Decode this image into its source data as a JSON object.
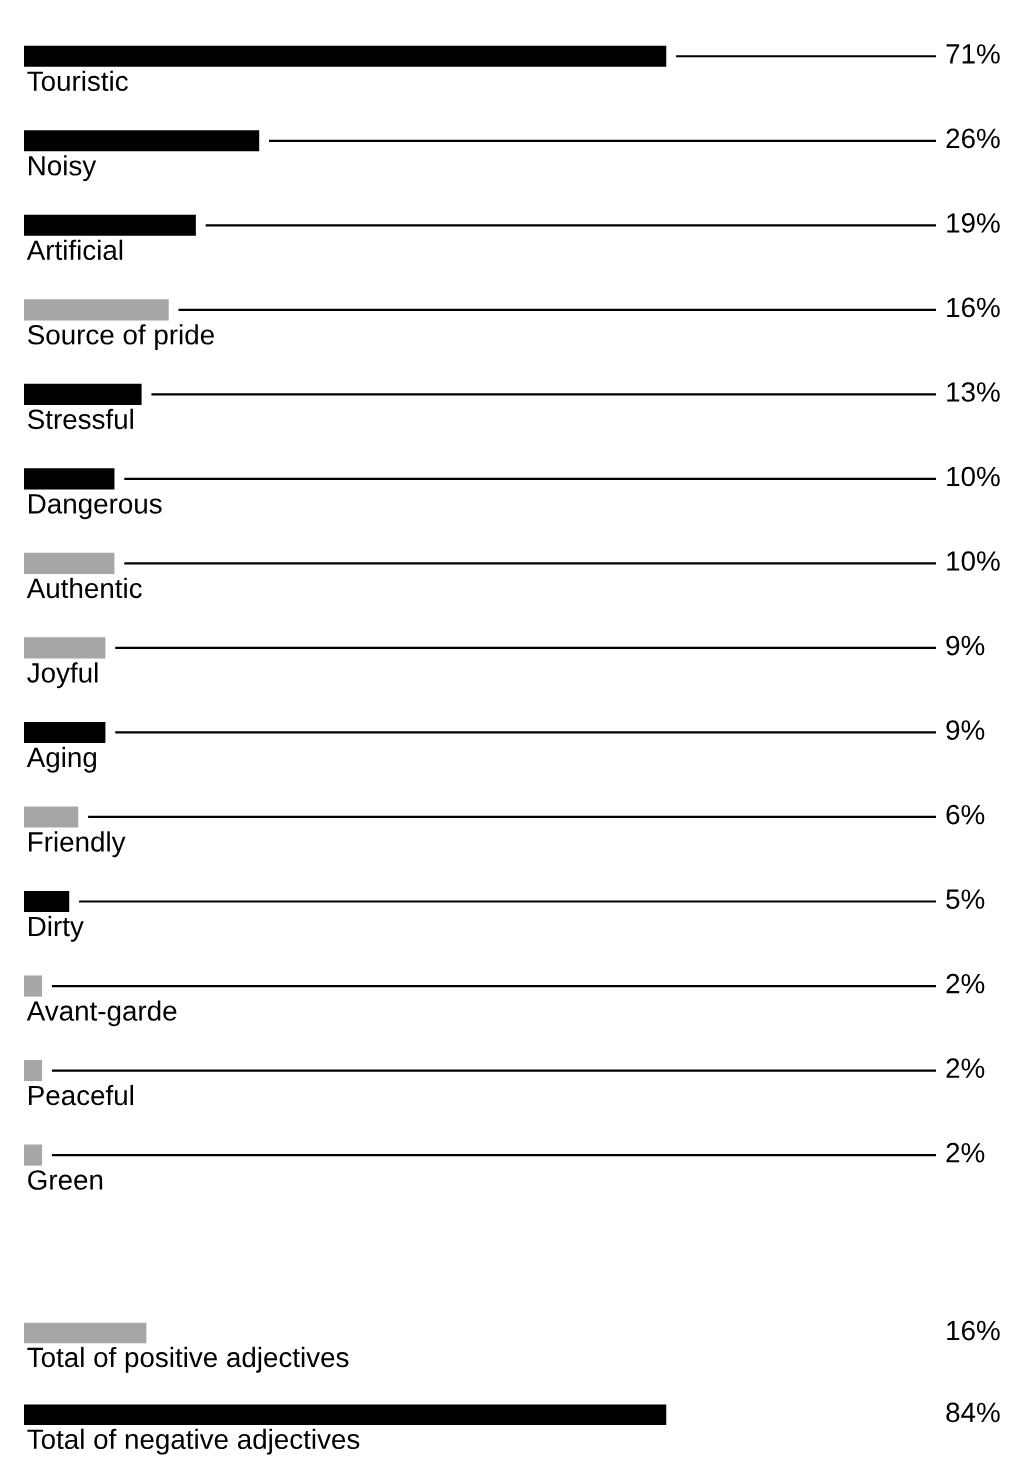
{
  "chart_data": [
    {
      "type": "bar",
      "orientation": "horizontal",
      "categories": [
        "Touristic",
        "Noisy",
        "Artificial",
        "Source of pride",
        "Stressful",
        "Dangerous",
        "Authentic",
        "Joyful",
        "Aging",
        "Friendly",
        "Dirty",
        "Avant-garde",
        "Peaceful",
        "Green"
      ],
      "values": [
        71,
        26,
        19,
        16,
        13,
        10,
        10,
        9,
        9,
        6,
        5,
        2,
        2,
        2
      ],
      "colors": [
        "#000000",
        "#000000",
        "#000000",
        "#a6a6a6",
        "#000000",
        "#000000",
        "#a6a6a6",
        "#a6a6a6",
        "#000000",
        "#a6a6a6",
        "#000000",
        "#a6a6a6",
        "#a6a6a6",
        "#a6a6a6"
      ],
      "value_labels": [
        "71%",
        "26%",
        "19%",
        "16%",
        "13%",
        "10%",
        "10%",
        "9%",
        "9%",
        "6%",
        "5%",
        "2%",
        "2%",
        "2%"
      ]
    },
    {
      "type": "bar",
      "orientation": "horizontal",
      "categories": [
        "Total of positive adjectives",
        "Total of negative adjectives"
      ],
      "values": [
        16,
        84
      ],
      "colors": [
        "#a6a6a6",
        "#000000"
      ],
      "value_labels": [
        "16%",
        "84%"
      ]
    }
  ]
}
